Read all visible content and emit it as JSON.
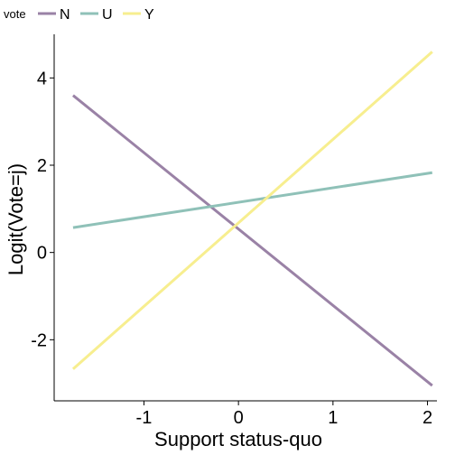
{
  "chart_data": {
    "type": "line",
    "xlabel": "Support status-quo",
    "ylabel": "Logit(Vote=j)",
    "xlim": [
      -1.95,
      2.1
    ],
    "ylim": [
      -3.4,
      5.0
    ],
    "x_ticks": [
      -1,
      0,
      1,
      2
    ],
    "x_tick_labels": [
      "-1",
      "0",
      "1",
      "2"
    ],
    "y_ticks": [
      -2,
      0,
      2,
      4
    ],
    "y_tick_labels": [
      "-2",
      "0",
      "2",
      "4"
    ],
    "grid": false,
    "legend": {
      "title": "vote",
      "position": "top-left",
      "entries": [
        "N",
        "U",
        "Y"
      ]
    },
    "series": [
      {
        "name": "N",
        "color": "#9a82a6",
        "x": [
          -1.75,
          2.05
        ],
        "y": [
          3.6,
          -3.05
        ]
      },
      {
        "name": "U",
        "color": "#8fc1b8",
        "x": [
          -1.75,
          2.05
        ],
        "y": [
          0.57,
          1.83
        ]
      },
      {
        "name": "Y",
        "color": "#f7ee8f",
        "x": [
          -1.75,
          2.05
        ],
        "y": [
          -2.67,
          4.6
        ]
      }
    ]
  }
}
